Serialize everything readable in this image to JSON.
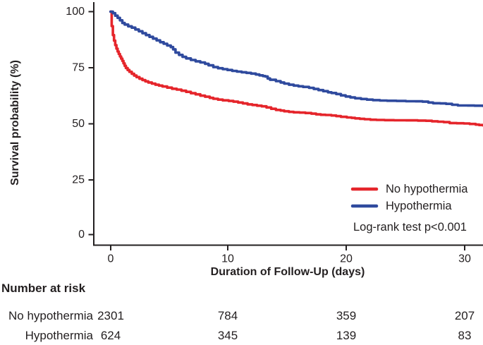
{
  "figure": {
    "y_axis_title": "Survival probability (%)",
    "x_axis_title": "Duration of Follow-Up (days)"
  },
  "legend": {
    "items": [
      {
        "label": "No hypothermia",
        "color": "#e5252b"
      },
      {
        "label": "Hypothermia",
        "color": "#2f4a9e"
      }
    ],
    "stat_text": "Log-rank test p<0.001"
  },
  "chart_data": {
    "type": "line",
    "subtype": "kaplan-meier-step",
    "title": "",
    "xlabel": "Duration of Follow-Up (days)",
    "ylabel": "Survival probability (%)",
    "xlim": [
      0,
      31.5
    ],
    "ylim": [
      0,
      100
    ],
    "grid": false,
    "legend_position": "inside-bottom-right",
    "x_ticks": [
      0,
      10,
      20,
      30
    ],
    "y_ticks": [
      100,
      75,
      50,
      25,
      0
    ],
    "x_tick_labels": [
      "0",
      "10",
      "20",
      "30"
    ],
    "y_tick_labels": [
      "100",
      "75",
      "50",
      "25",
      "0"
    ],
    "series": [
      {
        "name": "No hypothermia",
        "color": "#e5252b",
        "points": [
          [
            0,
            100
          ],
          [
            0.1,
            93.5
          ],
          [
            0.2,
            89.5
          ],
          [
            0.3,
            87
          ],
          [
            0.4,
            85
          ],
          [
            0.5,
            83.4
          ],
          [
            0.6,
            82.1
          ],
          [
            0.7,
            81
          ],
          [
            0.8,
            79.9
          ],
          [
            0.9,
            78.9
          ],
          [
            1.0,
            77.9
          ],
          [
            1.1,
            76.8
          ],
          [
            1.2,
            75.7
          ],
          [
            1.3,
            74.7
          ],
          [
            1.45,
            73.8
          ],
          [
            1.6,
            73
          ],
          [
            1.8,
            72.1
          ],
          [
            2.0,
            71.3
          ],
          [
            2.2,
            70.6
          ],
          [
            2.45,
            69.9
          ],
          [
            2.7,
            69.3
          ],
          [
            2.95,
            68.7
          ],
          [
            3.2,
            68.2
          ],
          [
            3.5,
            67.7
          ],
          [
            3.8,
            67.2
          ],
          [
            4.1,
            66.8
          ],
          [
            4.4,
            66.4
          ],
          [
            4.8,
            65.9
          ],
          [
            5.2,
            65.4
          ],
          [
            5.6,
            65
          ],
          [
            6.0,
            64.5
          ],
          [
            6.4,
            64
          ],
          [
            6.8,
            63.4
          ],
          [
            7.2,
            62.9
          ],
          [
            7.6,
            62.3
          ],
          [
            8.0,
            61.8
          ],
          [
            8.4,
            61.3
          ],
          [
            8.7,
            60.9
          ],
          [
            9.1,
            60.5
          ],
          [
            9.5,
            60.2
          ],
          [
            10,
            59.9
          ],
          [
            10.4,
            59.6
          ],
          [
            10.8,
            59.2
          ],
          [
            11.2,
            58.8
          ],
          [
            11.6,
            58.4
          ],
          [
            12,
            58.1
          ],
          [
            12.4,
            57.8
          ],
          [
            12.8,
            57.5
          ],
          [
            13.2,
            57
          ],
          [
            13.6,
            56.4
          ],
          [
            14,
            55.9
          ],
          [
            14.4,
            55.6
          ],
          [
            14.7,
            55.3
          ],
          [
            15.1,
            55
          ],
          [
            15.5,
            54.8
          ],
          [
            16,
            54.7
          ],
          [
            16.5,
            54.5
          ],
          [
            17,
            54.2
          ],
          [
            17.4,
            53.9
          ],
          [
            17.8,
            53.7
          ],
          [
            18.2,
            53.6
          ],
          [
            18.7,
            53.4
          ],
          [
            19.1,
            53.1
          ],
          [
            19.5,
            52.8
          ],
          [
            20,
            52.5
          ],
          [
            20.4,
            52.3
          ],
          [
            20.7,
            52.1
          ],
          [
            21.1,
            51.9
          ],
          [
            21.5,
            51.7
          ],
          [
            22,
            51.5
          ],
          [
            22.5,
            51.4
          ],
          [
            23.2,
            51.3
          ],
          [
            24,
            51.25
          ],
          [
            25,
            51.2
          ],
          [
            26,
            51.1
          ],
          [
            26.7,
            51
          ],
          [
            27.2,
            50.8
          ],
          [
            27.7,
            50.6
          ],
          [
            28.2,
            50.4
          ],
          [
            28.7,
            50
          ],
          [
            29.3,
            49.9
          ],
          [
            29.9,
            49.8
          ],
          [
            30.4,
            49.6
          ],
          [
            30.9,
            49.3
          ],
          [
            31.2,
            49.1
          ],
          [
            31.5,
            49
          ]
        ]
      },
      {
        "name": "Hypothermia",
        "color": "#2f4a9e",
        "points": [
          [
            0,
            100
          ],
          [
            0.2,
            99.3
          ],
          [
            0.4,
            98.2
          ],
          [
            0.6,
            97.2
          ],
          [
            0.8,
            96.1
          ],
          [
            1.0,
            94.9
          ],
          [
            1.2,
            94.2
          ],
          [
            1.5,
            93.4
          ],
          [
            1.8,
            92.8
          ],
          [
            2.1,
            92
          ],
          [
            2.4,
            91.2
          ],
          [
            2.7,
            90.3
          ],
          [
            3.0,
            89.5
          ],
          [
            3.3,
            88.7
          ],
          [
            3.6,
            87.9
          ],
          [
            3.9,
            87.1
          ],
          [
            4.2,
            86.3
          ],
          [
            4.5,
            85.6
          ],
          [
            4.8,
            84.8
          ],
          [
            5.1,
            84.1
          ],
          [
            5.3,
            83.1
          ],
          [
            5.5,
            81.6
          ],
          [
            5.8,
            80.6
          ],
          [
            6.1,
            79.7
          ],
          [
            6.4,
            79
          ],
          [
            6.8,
            78.3
          ],
          [
            7.2,
            77.7
          ],
          [
            7.6,
            77.2
          ],
          [
            8.0,
            76.6
          ],
          [
            8.3,
            75.9
          ],
          [
            8.7,
            75.1
          ],
          [
            9.1,
            74.6
          ],
          [
            9.5,
            74.2
          ],
          [
            9.9,
            73.8
          ],
          [
            10.3,
            73.4
          ],
          [
            10.7,
            73.1
          ],
          [
            11.1,
            72.8
          ],
          [
            11.5,
            72.5
          ],
          [
            11.9,
            72.2
          ],
          [
            12.3,
            71.8
          ],
          [
            12.6,
            71.4
          ],
          [
            12.9,
            71.1
          ],
          [
            13.1,
            70.9
          ],
          [
            13.3,
            70
          ],
          [
            13.5,
            69.4
          ],
          [
            14,
            68.8
          ],
          [
            14.4,
            68.2
          ],
          [
            14.7,
            67.7
          ],
          [
            15.1,
            67.2
          ],
          [
            15.5,
            66.8
          ],
          [
            15.9,
            66.5
          ],
          [
            16.3,
            66.2
          ],
          [
            16.8,
            65.8
          ],
          [
            17.2,
            65.3
          ],
          [
            17.6,
            64.8
          ],
          [
            18,
            64.3
          ],
          [
            18.4,
            63.8
          ],
          [
            18.7,
            63.5
          ],
          [
            19.1,
            63
          ],
          [
            19.5,
            62.4
          ],
          [
            19.9,
            61.9
          ],
          [
            20.3,
            61.5
          ],
          [
            20.7,
            61.1
          ],
          [
            21.2,
            60.8
          ],
          [
            21.7,
            60.5
          ],
          [
            22.2,
            60.3
          ],
          [
            22.8,
            60.1
          ],
          [
            23.4,
            60
          ],
          [
            24.2,
            59.9
          ],
          [
            25,
            59.8
          ],
          [
            25.8,
            59.75
          ],
          [
            26.4,
            59.6
          ],
          [
            26.9,
            59.2
          ],
          [
            27.3,
            58.9
          ],
          [
            27.9,
            58.8
          ],
          [
            28.4,
            58.6
          ],
          [
            28.9,
            58.2
          ],
          [
            29.4,
            57.9
          ],
          [
            30.2,
            57.85
          ],
          [
            30.8,
            57.8
          ],
          [
            31.5,
            57.7
          ]
        ]
      }
    ]
  },
  "risk_table": {
    "title": "Number at risk",
    "time_points": [
      0,
      10,
      20,
      30
    ],
    "rows": [
      {
        "label": "No hypothermia",
        "values": [
          "2301",
          "784",
          "359",
          "207"
        ]
      },
      {
        "label": "Hypothermia",
        "values": [
          "624",
          "345",
          "139",
          "83"
        ]
      }
    ]
  }
}
